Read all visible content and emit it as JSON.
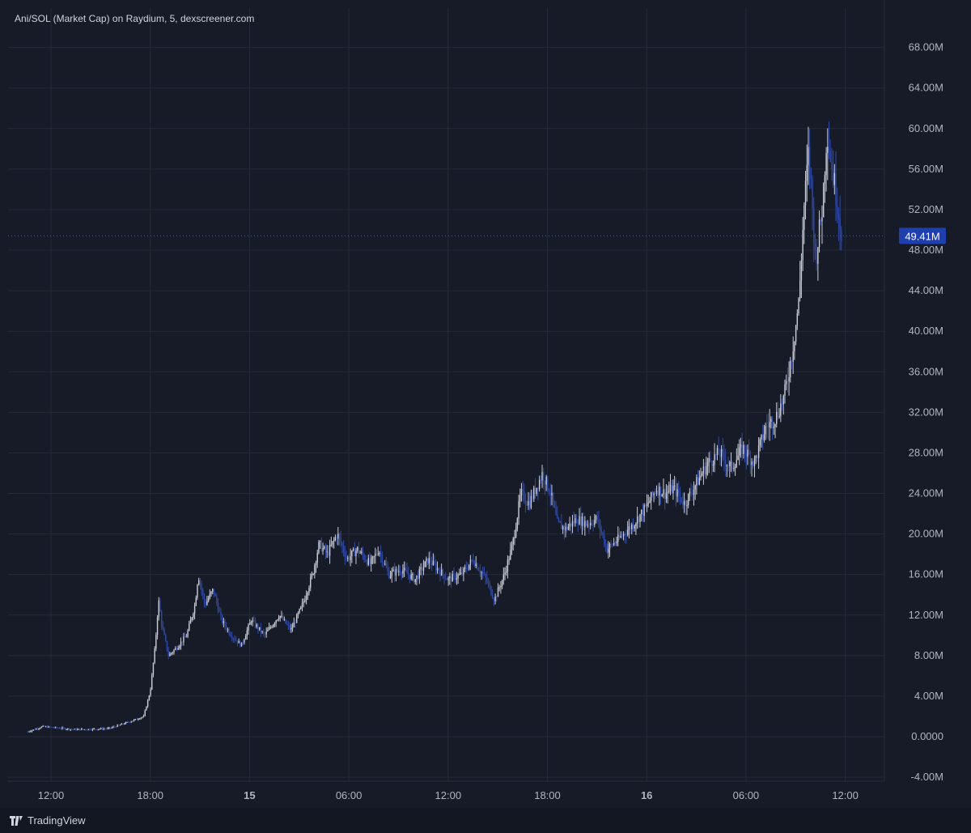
{
  "title": "Ani/SOL (Market Cap) on Raydium, 5, dexscreener.com",
  "brand": {
    "name": "TradingView",
    "icon": "tradingview-logo-icon"
  },
  "colors": {
    "background": "#171b27",
    "grid": "#252a38",
    "up": "#c9ccd6",
    "down": "#2f4aa8",
    "axis_text": "#b2b5be",
    "last_price_bg": "#1f3fae",
    "last_price_line": "#2f5dd8"
  },
  "chart_data": {
    "type": "candlestick",
    "title": "Ani/SOL (Market Cap) on Raydium, 5, dexscreener.com",
    "y_ticks": [
      "68.00M",
      "64.00M",
      "60.00M",
      "56.00M",
      "52.00M",
      "48.00M",
      "44.00M",
      "40.00M",
      "36.00M",
      "32.00M",
      "28.00M",
      "24.00M",
      "20.00M",
      "16.00M",
      "12.00M",
      "8.00M",
      "4.00M",
      "0.0000",
      "-4.00M"
    ],
    "y_tick_values": [
      68,
      64,
      60,
      56,
      52,
      48,
      44,
      40,
      36,
      32,
      28,
      24,
      20,
      16,
      12,
      8,
      4,
      0,
      -4
    ],
    "ylim": [
      -4,
      70
    ],
    "y_unit": "M",
    "x_ticks": [
      {
        "label": "12:00",
        "hours": 12,
        "bold": false
      },
      {
        "label": "18:00",
        "hours": 18,
        "bold": false
      },
      {
        "label": "15",
        "hours": 24,
        "bold": true
      },
      {
        "label": "06:00",
        "hours": 30,
        "bold": false
      },
      {
        "label": "12:00",
        "hours": 36,
        "bold": false
      },
      {
        "label": "18:00",
        "hours": 42,
        "bold": false
      },
      {
        "label": "16",
        "hours": 48,
        "bold": true
      },
      {
        "label": "06:00",
        "hours": 54,
        "bold": false
      },
      {
        "label": "12:00",
        "hours": 60,
        "bold": false
      }
    ],
    "xlim_hours": [
      9.6,
      62.6
    ],
    "last_price": 49.41,
    "last_price_label": "49.41M",
    "series": [
      {
        "hours": 10.6,
        "value": 0.5
      },
      {
        "hours": 11.5,
        "value": 1.0
      },
      {
        "hours": 13.5,
        "value": 0.7
      },
      {
        "hours": 15.5,
        "value": 0.8
      },
      {
        "hours": 16.8,
        "value": 1.5
      },
      {
        "hours": 17.6,
        "value": 2.0
      },
      {
        "hours": 18.0,
        "value": 4.5
      },
      {
        "hours": 18.3,
        "value": 9.0
      },
      {
        "hours": 18.5,
        "value": 13.5
      },
      {
        "hours": 18.7,
        "value": 11.0
      },
      {
        "hours": 19.1,
        "value": 8.0
      },
      {
        "hours": 19.6,
        "value": 8.8
      },
      {
        "hours": 20.2,
        "value": 10.0
      },
      {
        "hours": 20.7,
        "value": 13.0
      },
      {
        "hours": 20.9,
        "value": 16.0
      },
      {
        "hours": 21.3,
        "value": 13.0
      },
      {
        "hours": 21.8,
        "value": 14.5
      },
      {
        "hours": 22.3,
        "value": 11.5
      },
      {
        "hours": 22.9,
        "value": 10.0
      },
      {
        "hours": 23.5,
        "value": 9.0
      },
      {
        "hours": 24.1,
        "value": 11.5
      },
      {
        "hours": 24.9,
        "value": 10.0
      },
      {
        "hours": 25.8,
        "value": 12.0
      },
      {
        "hours": 26.5,
        "value": 10.5
      },
      {
        "hours": 27.2,
        "value": 13.0
      },
      {
        "hours": 27.8,
        "value": 16.0
      },
      {
        "hours": 28.2,
        "value": 19.0
      },
      {
        "hours": 28.7,
        "value": 18.0
      },
      {
        "hours": 29.3,
        "value": 20.0
      },
      {
        "hours": 29.9,
        "value": 17.5
      },
      {
        "hours": 30.5,
        "value": 18.5
      },
      {
        "hours": 31.3,
        "value": 17.0
      },
      {
        "hours": 31.8,
        "value": 18.5
      },
      {
        "hours": 32.4,
        "value": 16.0
      },
      {
        "hours": 33.2,
        "value": 16.5
      },
      {
        "hours": 34.0,
        "value": 15.5
      },
      {
        "hours": 34.8,
        "value": 17.5
      },
      {
        "hours": 35.4,
        "value": 16.5
      },
      {
        "hours": 36.0,
        "value": 15.5
      },
      {
        "hours": 36.8,
        "value": 16.0
      },
      {
        "hours": 37.5,
        "value": 17.5
      },
      {
        "hours": 38.3,
        "value": 15.5
      },
      {
        "hours": 38.8,
        "value": 13.5
      },
      {
        "hours": 39.4,
        "value": 16.0
      },
      {
        "hours": 39.9,
        "value": 19.0
      },
      {
        "hours": 40.4,
        "value": 24.0
      },
      {
        "hours": 40.9,
        "value": 23.0
      },
      {
        "hours": 41.3,
        "value": 24.5
      },
      {
        "hours": 41.7,
        "value": 26.0
      },
      {
        "hours": 42.2,
        "value": 24.0
      },
      {
        "hours": 42.6,
        "value": 21.0
      },
      {
        "hours": 43.1,
        "value": 20.5
      },
      {
        "hours": 43.8,
        "value": 21.5
      },
      {
        "hours": 44.4,
        "value": 21.0
      },
      {
        "hours": 45.0,
        "value": 21.5
      },
      {
        "hours": 45.6,
        "value": 18.5
      },
      {
        "hours": 46.3,
        "value": 19.5
      },
      {
        "hours": 47.2,
        "value": 21.0
      },
      {
        "hours": 47.9,
        "value": 22.5
      },
      {
        "hours": 48.6,
        "value": 24.5
      },
      {
        "hours": 49.1,
        "value": 24.0
      },
      {
        "hours": 49.6,
        "value": 24.5
      },
      {
        "hours": 50.3,
        "value": 23.0
      },
      {
        "hours": 51.0,
        "value": 25.0
      },
      {
        "hours": 51.7,
        "value": 27.0
      },
      {
        "hours": 52.4,
        "value": 28.0
      },
      {
        "hours": 53.1,
        "value": 26.5
      },
      {
        "hours": 53.8,
        "value": 28.5
      },
      {
        "hours": 54.5,
        "value": 27.0
      },
      {
        "hours": 55.2,
        "value": 30.5
      },
      {
        "hours": 55.8,
        "value": 31.5
      },
      {
        "hours": 56.3,
        "value": 33.5
      },
      {
        "hours": 56.8,
        "value": 38.0
      },
      {
        "hours": 57.2,
        "value": 43.0
      },
      {
        "hours": 57.5,
        "value": 52.0
      },
      {
        "hours": 57.8,
        "value": 58.0
      },
      {
        "hours": 58.2,
        "value": 47.0
      },
      {
        "hours": 58.6,
        "value": 52.0
      },
      {
        "hours": 58.9,
        "value": 60.0
      },
      {
        "hours": 59.2,
        "value": 56.0
      },
      {
        "hours": 59.5,
        "value": 53.0
      },
      {
        "hours": 59.8,
        "value": 49.41
      }
    ]
  }
}
